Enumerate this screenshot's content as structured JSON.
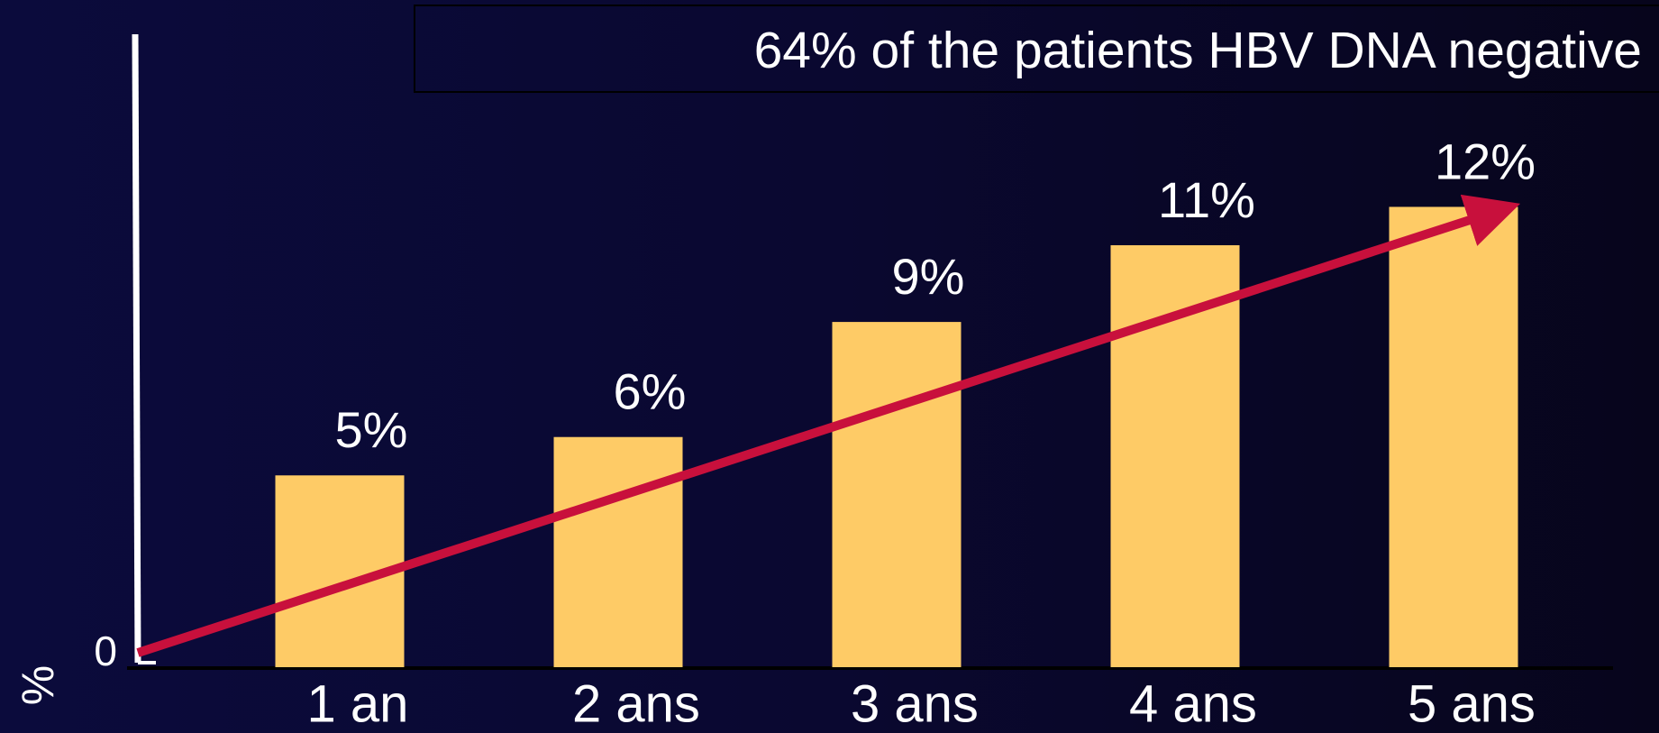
{
  "chart_data": {
    "type": "bar",
    "annotation": "64% of the patients HBV DNA negative",
    "y_label": "%",
    "categories": [
      "1 an",
      "2 ans",
      "3 ans",
      "4 ans",
      "5 ans"
    ],
    "values": [
      5,
      6,
      9,
      11,
      12
    ],
    "value_labels": [
      "5%",
      "6%",
      "9%",
      "11%",
      "12%"
    ],
    "color": "#fecb66",
    "ylim": [
      0,
      16.5
    ],
    "yticks": [
      0
    ],
    "grid": false
  }
}
